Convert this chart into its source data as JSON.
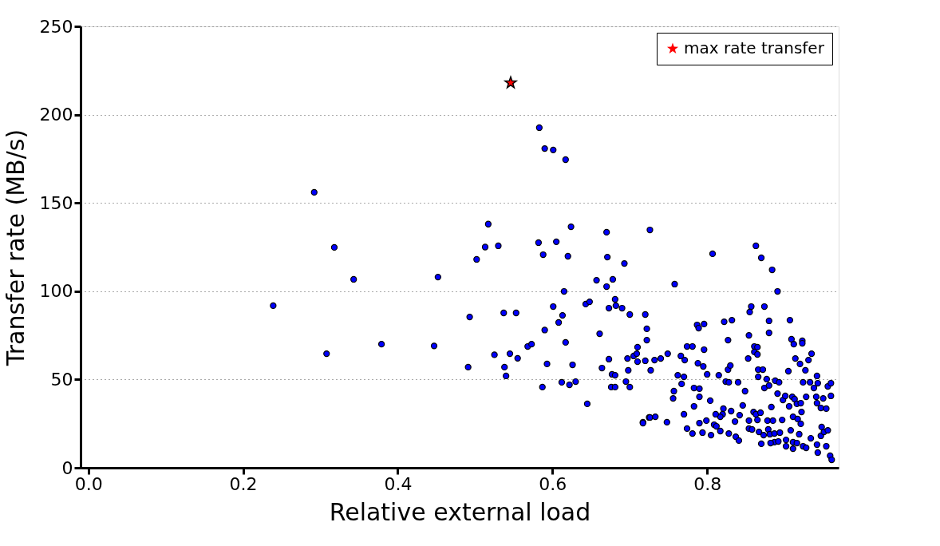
{
  "chart_data": {
    "type": "scatter",
    "xlabel": "Relative external load",
    "ylabel": "Transfer rate (MB/s)",
    "xlim": [
      -0.01,
      0.97
    ],
    "xticks": [
      {
        "value": 0,
        "label": "0.0"
      },
      0.2,
      0.4,
      0.6,
      0.8
    ],
    "ylim": [
      0,
      250
    ],
    "yticks": [
      0,
      50,
      100,
      150,
      200,
      250
    ],
    "grid": "y",
    "legend": "top right",
    "series": [
      {
        "marker": "circle",
        "color": "#0000ff",
        "x": [
          0.239,
          0.292,
          0.318,
          0.343,
          0.308,
          0.379,
          0.447,
          0.452,
          0.493,
          0.502,
          0.513,
          0.517,
          0.53,
          0.537,
          0.553,
          0.525,
          0.491,
          0.538,
          0.54,
          0.545,
          0.555,
          0.568,
          0.573,
          0.583,
          0.59,
          0.601,
          0.617,
          0.582,
          0.588,
          0.59,
          0.593,
          0.587,
          0.624,
          0.67,
          0.726,
          0.605,
          0.62,
          0.671,
          0.693,
          0.657,
          0.678,
          0.67,
          0.615,
          0.643,
          0.648,
          0.681,
          0.673,
          0.682,
          0.69,
          0.7,
          0.72,
          0.601,
          0.613,
          0.608,
          0.661,
          0.722,
          0.722,
          0.617,
          0.626,
          0.673,
          0.664,
          0.697,
          0.705,
          0.709,
          0.71,
          0.71,
          0.72,
          0.698,
          0.677,
          0.681,
          0.695,
          0.676,
          0.681,
          0.7,
          0.612,
          0.622,
          0.63,
          0.645,
          0.717,
          0.725,
          0.863,
          0.807,
          0.87,
          0.884,
          0.758,
          0.891,
          0.857,
          0.855,
          0.874,
          0.88,
          0.907,
          0.822,
          0.832,
          0.787,
          0.789,
          0.796,
          0.827,
          0.854,
          0.88,
          0.909,
          0.912,
          0.923,
          0.923,
          0.749,
          0.774,
          0.781,
          0.796,
          0.766,
          0.771,
          0.732,
          0.74,
          0.727,
          0.788,
          0.795,
          0.8,
          0.815,
          0.827,
          0.83,
          0.861,
          0.865,
          0.861,
          0.865,
          0.853,
          0.762,
          0.77,
          0.767,
          0.757,
          0.756,
          0.783,
          0.79,
          0.79,
          0.804,
          0.783,
          0.77,
          0.824,
          0.828,
          0.84,
          0.849,
          0.866,
          0.872,
          0.866,
          0.877,
          0.874,
          0.88,
          0.888,
          0.893,
          0.905,
          0.914,
          0.92,
          0.927,
          0.931,
          0.935,
          0.942,
          0.924,
          0.933,
          0.938,
          0.943,
          0.956,
          0.96,
          0.891,
          0.898,
          0.901,
          0.906,
          0.91,
          0.913,
          0.916,
          0.921,
          0.922,
          0.928,
          0.941,
          0.942,
          0.947,
          0.95,
          0.954,
          0.96,
          0.911,
          0.917,
          0.921,
          0.919,
          0.908,
          0.897,
          0.883,
          0.878,
          0.885,
          0.86,
          0.863,
          0.869,
          0.865,
          0.854,
          0.846,
          0.842,
          0.836,
          0.831,
          0.821,
          0.82,
          0.817,
          0.811,
          0.809,
          0.812,
          0.817,
          0.799,
          0.79,
          0.794,
          0.805,
          0.781,
          0.774,
          0.748,
          0.726,
          0.733,
          0.717,
          0.828,
          0.837,
          0.841,
          0.854,
          0.858,
          0.867,
          0.873,
          0.879,
          0.881,
          0.887,
          0.894,
          0.887,
          0.882,
          0.87,
          0.892,
          0.902,
          0.902,
          0.911,
          0.911,
          0.916,
          0.924,
          0.928,
          0.934,
          0.942,
          0.943,
          0.947,
          0.948,
          0.951,
          0.954,
          0.956,
          0.959,
          0.961
        ],
        "values": [
          91.8,
          156,
          124.8,
          106.7,
          64.6,
          70,
          69,
          108,
          85.4,
          118,
          125,
          138,
          125.7,
          87.7,
          87.7,
          64,
          57,
          57,
          52,
          64.6,
          62,
          68.7,
          70,
          192.6,
          180.8,
          180,
          174.5,
          127.5,
          120.7,
          78,
          58.8,
          45.7,
          136.5,
          133.4,
          134.7,
          128,
          119.8,
          119.3,
          115.7,
          106.2,
          106.7,
          102.6,
          99.9,
          92.7,
          94,
          95.4,
          90.4,
          91.8,
          90.4,
          86.8,
          86.8,
          91.3,
          86.3,
          82.3,
          75.9,
          78.7,
          72.3,
          71,
          58.3,
          61.5,
          56.5,
          61.9,
          63.3,
          64.6,
          68.3,
          60.1,
          60.6,
          55.2,
          52.9,
          52.4,
          48.8,
          45.7,
          45.7,
          45.7,
          48.4,
          47,
          48.8,
          36.2,
          25.8,
          28.5,
          125.7,
          121.2,
          118.9,
          112.1,
          104,
          99.9,
          91.3,
          88.2,
          91.3,
          83.2,
          83.6,
          82.7,
          83.6,
          80.9,
          79.1,
          81.4,
          72.3,
          75,
          76.4,
          72.8,
          70,
          71.9,
          70.5,
          64.6,
          68.7,
          68.7,
          66.9,
          63.3,
          61,
          61,
          61.9,
          55.2,
          59.2,
          57.4,
          52.9,
          52.4,
          55.6,
          57.9,
          68.7,
          68.3,
          65.6,
          64.2,
          61.9,
          52.4,
          51.5,
          47.5,
          43.4,
          39.3,
          45.2,
          44.8,
          40.2,
          38,
          34.8,
          30.3,
          48.8,
          48.4,
          48.4,
          43.4,
          55.6,
          55.6,
          51.5,
          50.2,
          45.2,
          46.6,
          49.3,
          48.4,
          54.7,
          61.9,
          58.8,
          55.2,
          61,
          64.6,
          52,
          48.4,
          48.4,
          45.2,
          47.9,
          46.1,
          47.9,
          42,
          38.4,
          40.7,
          34.8,
          40.2,
          38.9,
          36.2,
          36.6,
          31.6,
          40.2,
          40.2,
          36.6,
          33.9,
          39.3,
          33.5,
          40.7,
          28.9,
          27.6,
          24.9,
          19,
          21.2,
          27.1,
          34.4,
          26.7,
          26.7,
          31.6,
          30.3,
          31.2,
          27.1,
          26.7,
          35.3,
          29.8,
          26.2,
          32.1,
          33.5,
          30.3,
          28.9,
          30.3,
          24.4,
          23.5,
          20.8,
          26.7,
          25.3,
          19.9,
          18.5,
          19.4,
          22.2,
          25.8,
          28.5,
          28.9,
          25.3,
          19.4,
          17.6,
          15.4,
          22.2,
          21.7,
          20.3,
          18.5,
          21.7,
          19,
          19.4,
          19.9,
          14.5,
          14,
          13.6,
          14.9,
          15.8,
          12.2,
          10.8,
          14.5,
          14,
          12.2,
          11.3,
          16.7,
          13.1,
          8.6,
          18.1,
          23.1,
          20.3,
          12.2,
          21.2,
          6.8,
          4.5
        ]
      },
      {
        "marker": "star",
        "name": "max rate transfer",
        "color": "#ff0000",
        "x": [
          0.546
        ],
        "values": [
          218
        ]
      }
    ]
  }
}
